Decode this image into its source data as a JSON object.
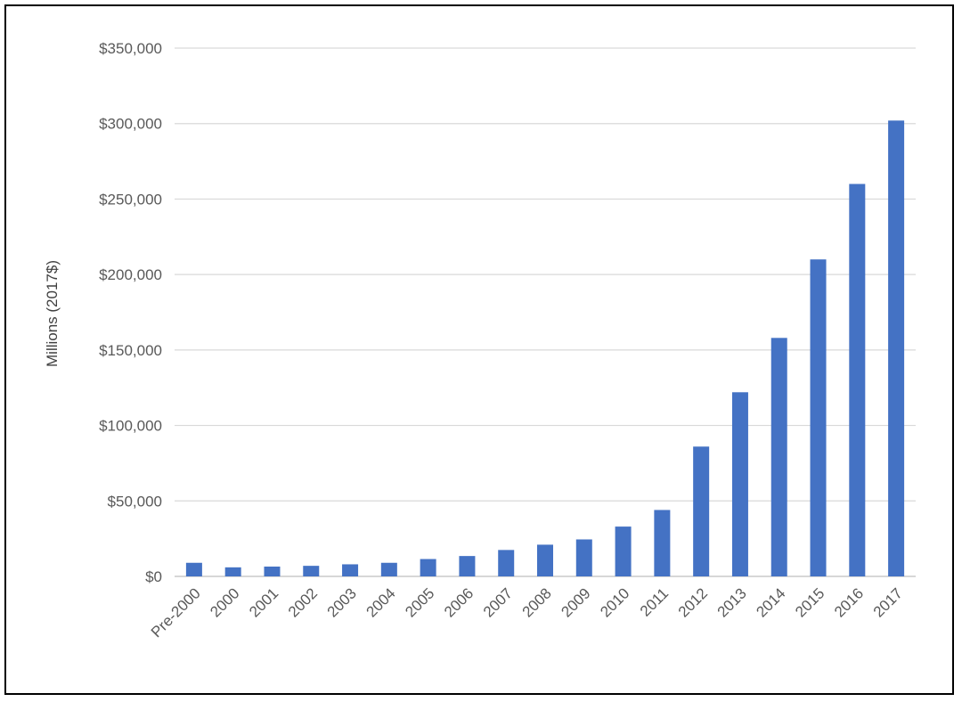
{
  "chart_data": {
    "type": "bar",
    "title": "",
    "xlabel": "",
    "ylabel": "Millions (2017$)",
    "ylim": [
      0,
      350000
    ],
    "yticks": [
      0,
      50000,
      100000,
      150000,
      200000,
      250000,
      300000,
      350000
    ],
    "ytick_labels": [
      "$0",
      "$50,000",
      "$100,000",
      "$150,000",
      "$200,000",
      "$250,000",
      "$300,000",
      "$350,000"
    ],
    "categories": [
      "Pre-2000",
      "2000",
      "2001",
      "2002",
      "2003",
      "2004",
      "2005",
      "2006",
      "2007",
      "2008",
      "2009",
      "2010",
      "2011",
      "2012",
      "2013",
      "2014",
      "2015",
      "2016",
      "2017"
    ],
    "values": [
      9000,
      6000,
      6500,
      7000,
      8000,
      9000,
      11500,
      13500,
      17500,
      21000,
      24500,
      33000,
      44000,
      86000,
      122000,
      158000,
      210000,
      260000,
      302000
    ],
    "bar_color": "#4472C4",
    "grid": true,
    "legend": "none"
  }
}
